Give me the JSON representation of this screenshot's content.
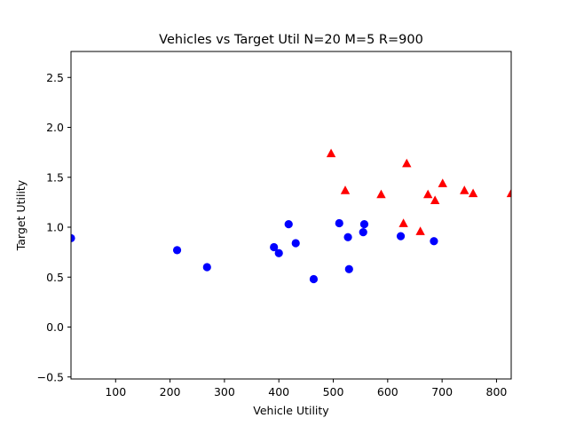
{
  "chart_data": {
    "type": "scatter",
    "title": "Vehicles vs Target Util N=20 M=5 R=900",
    "xlabel": "Vehicle Utility",
    "ylabel": "Target Utility",
    "xlim": [
      18,
      827
    ],
    "ylim": [
      -0.52,
      2.76
    ],
    "x_ticks": [
      100,
      200,
      300,
      400,
      500,
      600,
      700,
      800
    ],
    "y_ticks": [
      -0.5,
      0.0,
      0.5,
      1.0,
      1.5,
      2.0,
      2.5
    ],
    "x_tick_labels": [
      "100",
      "200",
      "300",
      "400",
      "500",
      "600",
      "700",
      "800"
    ],
    "y_tick_labels": [
      "−0.5",
      "0.0",
      "0.5",
      "1.0",
      "1.5",
      "2.0",
      "2.5"
    ],
    "grid": false,
    "series": [
      {
        "marker": "circle",
        "color": "#0000ff",
        "points": [
          [
            18,
            0.89
          ],
          [
            213,
            0.77
          ],
          [
            268,
            0.6
          ],
          [
            391,
            0.8
          ],
          [
            400,
            0.74
          ],
          [
            418,
            1.03
          ],
          [
            431,
            0.84
          ],
          [
            464,
            0.48
          ],
          [
            511,
            1.04
          ],
          [
            527,
            0.9
          ],
          [
            529,
            0.58
          ],
          [
            555,
            0.95
          ],
          [
            557,
            1.03
          ],
          [
            624,
            0.91
          ],
          [
            685,
            0.86
          ]
        ]
      },
      {
        "marker": "triangle",
        "color": "#ff0000",
        "points": [
          [
            496,
            1.74
          ],
          [
            522,
            1.37
          ],
          [
            588,
            1.33
          ],
          [
            629,
            1.04
          ],
          [
            635,
            1.64
          ],
          [
            660,
            0.96
          ],
          [
            674,
            1.33
          ],
          [
            687,
            1.27
          ],
          [
            701,
            1.44
          ],
          [
            741,
            1.37
          ],
          [
            757,
            1.34
          ],
          [
            827,
            1.34
          ]
        ]
      }
    ]
  }
}
